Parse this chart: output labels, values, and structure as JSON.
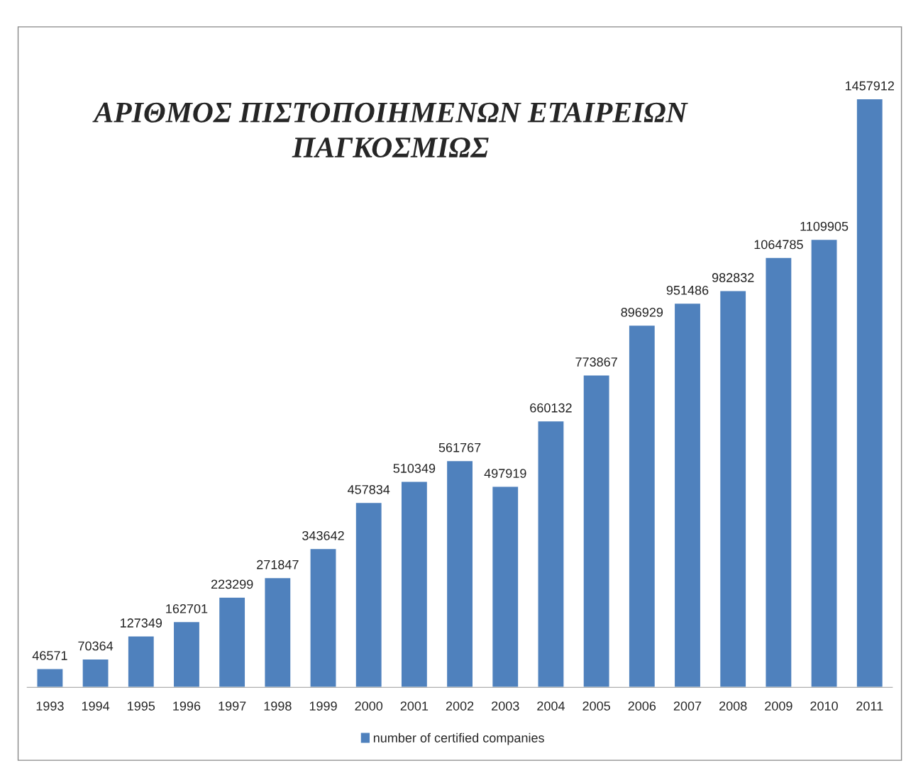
{
  "chart_data": {
    "type": "bar",
    "title": "ΑΡΙΘΜΟΣ ΠΙΣΤΟΠΟΙΗΜΕΝΩΝ ΕΤΑΙΡΕΙΩΝ\nΠΑΓΚΟΣΜΙΩΣ",
    "categories": [
      "1993",
      "1994",
      "1995",
      "1996",
      "1997",
      "1998",
      "1999",
      "2000",
      "2001",
      "2002",
      "2003",
      "2004",
      "2005",
      "2006",
      "2007",
      "2008",
      "2009",
      "2010",
      "2011"
    ],
    "series": [
      {
        "name": "number of certified companies",
        "color": "#4f81bd",
        "values": [
          46571,
          70364,
          127349,
          162701,
          223299,
          271847,
          343642,
          457834,
          510349,
          561767,
          497919,
          660132,
          773867,
          896929,
          951486,
          982832,
          1064785,
          1109905,
          1457912
        ]
      }
    ],
    "data_labels": true,
    "legend": "bottom",
    "grid": false,
    "tick_labels": "x"
  }
}
